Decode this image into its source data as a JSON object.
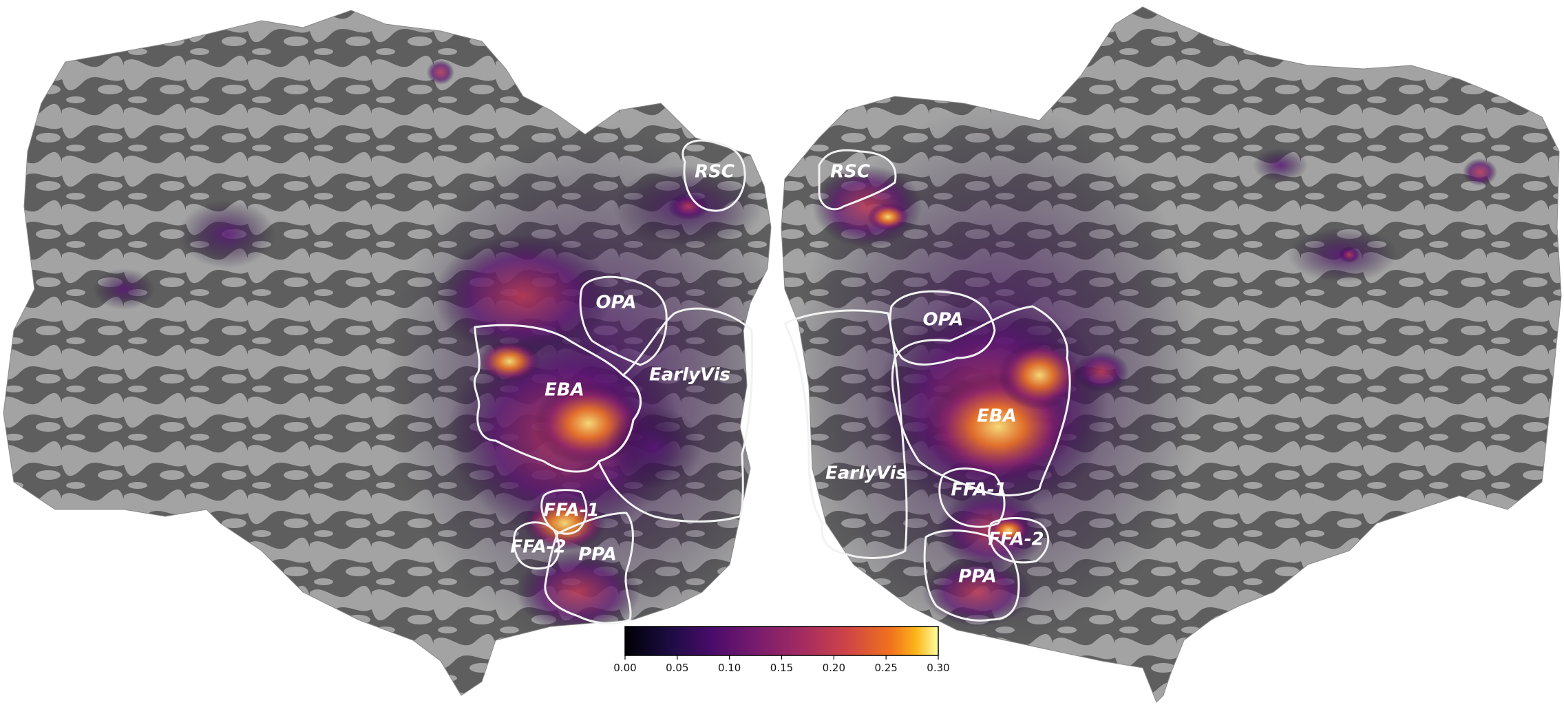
{
  "figure": {
    "background": "#ffffff",
    "sulc_dark": "#5e5e5e",
    "sulc_light": "#a3a3a3",
    "outline_color": "#f2f2f2",
    "label_color": "#ffffff",
    "colormap": "inferno"
  },
  "rois": {
    "left": {
      "rsc": "RSC",
      "opa": "OPA",
      "earlyvis": "EarlyVis",
      "eba": "EBA",
      "ffa1": "FFA-1",
      "ffa2": "FFA-2",
      "ppa": "PPA"
    },
    "right": {
      "rsc": "RSC",
      "opa": "OPA",
      "earlyvis": "EarlyVis",
      "eba": "EBA",
      "ffa1": "FFA-1",
      "ffa2": "FFA-2",
      "ppa": "PPA"
    }
  },
  "colorbar": {
    "min": 0.0,
    "max": 0.3,
    "ticks": [
      "0.00",
      "0.05",
      "0.10",
      "0.15",
      "0.20",
      "0.25",
      "0.30"
    ]
  }
}
